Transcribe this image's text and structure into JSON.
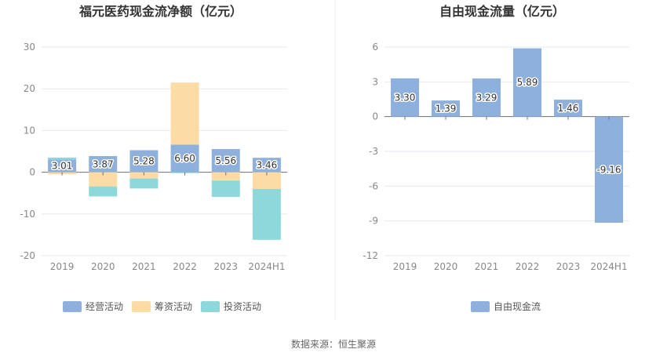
{
  "footer": {
    "source": "数据来源：恒生聚源"
  },
  "colors": {
    "operating": "#8eb0dd",
    "financing": "#fddba5",
    "investing": "#8cd8da",
    "free": "#8eb0dd",
    "grid": "#e6e9f0",
    "axis": "#6e7079"
  },
  "chart_data": [
    {
      "type": "bar",
      "stacked": true,
      "title": "福元医药现金流净额（亿元）",
      "categories": [
        "2019",
        "2020",
        "2021",
        "2022",
        "2023",
        "2024H1"
      ],
      "ylim": [
        -20,
        30
      ],
      "yticks": [
        30,
        20,
        10,
        0,
        -10,
        -20
      ],
      "grid": true,
      "legend_position": "bottom",
      "series": [
        {
          "name": "经营活动",
          "values": [
            3.01,
            3.87,
            5.28,
            6.6,
            5.56,
            3.46
          ],
          "labels": [
            "3.01",
            "3.87",
            "5.28",
            "6.60",
            "5.56",
            "3.46"
          ]
        },
        {
          "name": "筹资活动",
          "values": [
            -0.5,
            -3.4,
            -1.5,
            14.9,
            -2.0,
            -4.0
          ]
        },
        {
          "name": "投资活动",
          "values": [
            0.5,
            -2.4,
            -2.4,
            -0.2,
            -3.9,
            -12.2
          ]
        }
      ]
    },
    {
      "type": "bar",
      "title": "自由现金流量（亿元）",
      "categories": [
        "2019",
        "2020",
        "2021",
        "2022",
        "2023",
        "2024H1"
      ],
      "ylim": [
        -12,
        6
      ],
      "yticks": [
        6,
        3,
        0,
        -3,
        -6,
        -9,
        -12
      ],
      "grid": true,
      "legend_position": "bottom",
      "series": [
        {
          "name": "自由现金流",
          "values": [
            3.3,
            1.39,
            3.29,
            5.89,
            1.46,
            -9.16
          ],
          "labels": [
            "3.30",
            "1.39",
            "3.29",
            "5.89",
            "1.46",
            "-9.16"
          ]
        }
      ]
    }
  ]
}
